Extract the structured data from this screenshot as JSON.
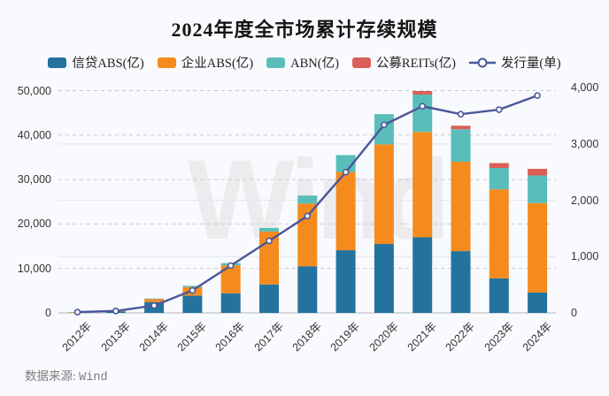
{
  "title": "2024年度全市场累计存续规模",
  "watermark": "Wind",
  "source": {
    "label": "数据来源:",
    "value": "Wind"
  },
  "colors": {
    "background": "#f8fafd",
    "credit_abs": "#24739E",
    "enterprise_abs": "#F68B1D",
    "abn": "#59BEB9",
    "reits": "#D95F57",
    "issuance_line": "#4A569B",
    "grid_dashed": "#c7c9cd",
    "grid_solid": "#e3e6ec",
    "axis_baseline": "#c0c3c8",
    "tick_text": "#333333"
  },
  "chart_data": {
    "type": "bar",
    "subtype": "stacked-bar-with-line",
    "title": "2024年度全市场累计存续规模",
    "categories": [
      "2012年",
      "2013年",
      "2014年",
      "2015年",
      "2016年",
      "2017年",
      "2018年",
      "2019年",
      "2020年",
      "2021年",
      "2022年",
      "2023年",
      "2024年"
    ],
    "series": [
      {
        "name": "信贷ABS(亿)",
        "type": "bar",
        "axis": "left",
        "color": "#24739E",
        "values": [
          90,
          350,
          2450,
          3900,
          4400,
          6400,
          10500,
          14100,
          15500,
          17000,
          13900,
          7800,
          4600
        ]
      },
      {
        "name": "企业ABS(亿)",
        "type": "bar",
        "axis": "left",
        "color": "#F68B1D",
        "values": [
          40,
          100,
          650,
          1900,
          6300,
          11900,
          14100,
          17600,
          22400,
          23700,
          20100,
          20000,
          20100
        ]
      },
      {
        "name": "ABN(亿)",
        "type": "bar",
        "axis": "left",
        "color": "#59BEB9",
        "values": [
          0,
          0,
          140,
          300,
          500,
          800,
          1800,
          3800,
          6800,
          8400,
          7300,
          4800,
          6200
        ]
      },
      {
        "name": "公募REITs(亿)",
        "type": "bar",
        "axis": "left",
        "color": "#D95F57",
        "values": [
          0,
          0,
          0,
          0,
          0,
          0,
          0,
          0,
          0,
          800,
          800,
          1100,
          1500
        ]
      },
      {
        "name": "发行量(单)",
        "type": "line",
        "axis": "right",
        "color": "#4A569B",
        "values": [
          15,
          35,
          130,
          400,
          840,
          1280,
          1720,
          2500,
          3340,
          3670,
          3530,
          3610,
          3860
        ]
      }
    ],
    "left_axis": {
      "min": 0,
      "max": 50000,
      "ticks": [
        0,
        10000,
        20000,
        30000,
        40000,
        50000
      ],
      "gridline_style": "dashed"
    },
    "right_axis": {
      "min": 0,
      "max": 4000,
      "ticks": [
        0,
        1000,
        2000,
        3000,
        4000
      ],
      "gridline_style": "solid",
      "solid_grid_ticks": [
        1000,
        2000,
        3000
      ]
    },
    "legend_position": "top-center",
    "grid": true
  }
}
